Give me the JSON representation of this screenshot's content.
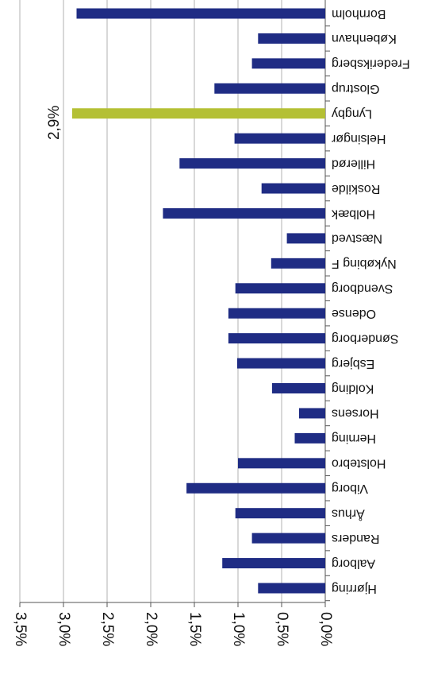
{
  "chart_data": {
    "type": "bar",
    "orientation": "horizontal-rotated-180",
    "categories": [
      "Bornholm",
      "København",
      "Frederiksberg",
      "Glostrup",
      "Lyngby",
      "Helsingør",
      "Hillerød",
      "Roskilde",
      "Holbæk",
      "Næstved",
      "Nykøbing F",
      "Svendborg",
      "Odense",
      "Sønderborg",
      "Esbjerg",
      "Kolding",
      "Horsens",
      "Herning",
      "Holstebro",
      "Viborg",
      "Århus",
      "Randers",
      "Aalborg",
      "Hjørring"
    ],
    "values": [
      2.85,
      0.77,
      0.84,
      1.27,
      2.9,
      1.04,
      1.67,
      0.73,
      1.86,
      0.44,
      0.62,
      1.03,
      1.11,
      1.11,
      1.01,
      0.61,
      0.3,
      0.35,
      1.0,
      1.59,
      1.03,
      0.84,
      1.18,
      0.77
    ],
    "value_labels": [
      null,
      null,
      null,
      null,
      "2,9%",
      null,
      null,
      null,
      null,
      null,
      null,
      null,
      null,
      null,
      null,
      null,
      null,
      null,
      null,
      null,
      null,
      null,
      null,
      null
    ],
    "colors": [
      "#1f2c84",
      "#1f2c84",
      "#1f2c84",
      "#1f2c84",
      "#b4c034",
      "#1f2c84",
      "#1f2c84",
      "#1f2c84",
      "#1f2c84",
      "#1f2c84",
      "#1f2c84",
      "#1f2c84",
      "#1f2c84",
      "#1f2c84",
      "#1f2c84",
      "#1f2c84",
      "#1f2c84",
      "#1f2c84",
      "#1f2c84",
      "#1f2c84",
      "#1f2c84",
      "#1f2c84",
      "#1f2c84",
      "#1f2c84"
    ],
    "xlim": [
      0,
      3.5
    ],
    "xticks": [
      {
        "value": 0,
        "label": "0,0%"
      },
      {
        "value": 0.5,
        "label": "0,5%"
      },
      {
        "value": 1,
        "label": "1,0%"
      },
      {
        "value": 1.5,
        "label": "1,5%"
      },
      {
        "value": 2,
        "label": "2,0%"
      },
      {
        "value": 2.5,
        "label": "2,5%"
      },
      {
        "value": 3,
        "label": "3,0%"
      },
      {
        "value": 3.5,
        "label": "3,5%"
      }
    ],
    "grid": true
  }
}
